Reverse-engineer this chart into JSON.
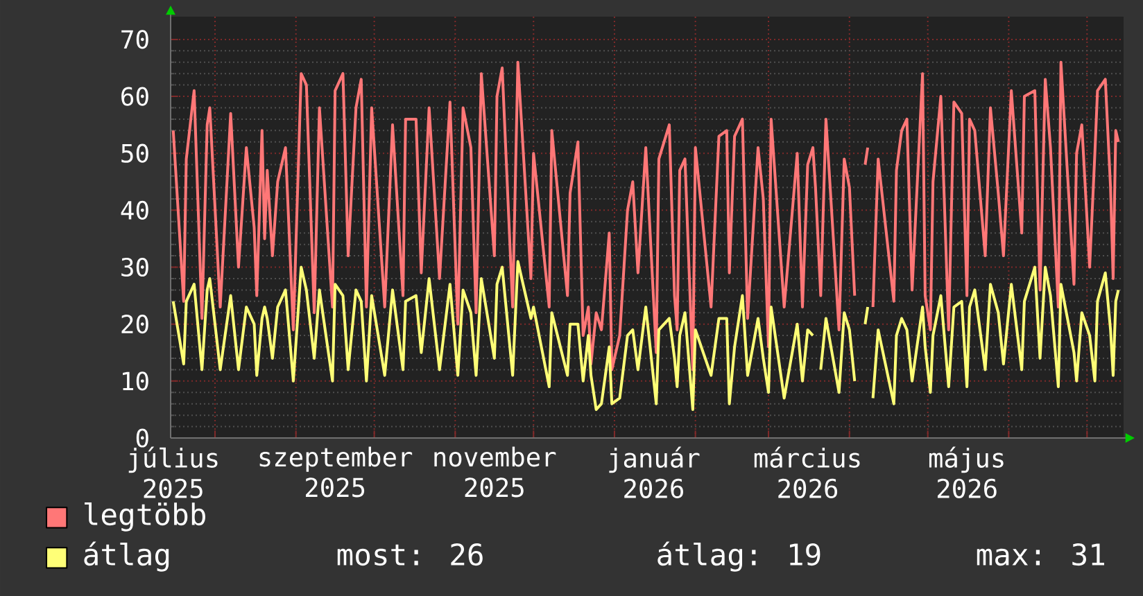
{
  "chart_data": {
    "type": "line",
    "x": [
      "2025-07-16",
      "2025-07-20",
      "2025-07-21",
      "2025-07-24",
      "2025-07-27",
      "2025-07-29",
      "2025-07-30",
      "2025-08-03",
      "2025-08-07",
      "2025-08-10",
      "2025-08-13",
      "2025-08-16",
      "2025-08-17",
      "2025-08-19",
      "2025-08-20",
      "2025-08-21",
      "2025-08-23",
      "2025-08-25",
      "2025-08-28",
      "2025-08-31",
      "2025-09-03",
      "2025-09-05",
      "2025-09-08",
      "2025-09-10",
      "2025-09-15",
      "2025-09-16",
      "2025-09-19",
      "2025-09-21",
      "2025-09-24",
      "2025-09-26",
      "2025-09-28",
      "2025-09-30",
      "2025-10-05",
      "2025-10-08",
      "2025-10-12",
      "2025-10-13",
      "2025-10-17",
      "2025-10-19",
      "2025-10-22",
      "2025-10-26",
      "2025-10-30",
      "2025-11-02",
      "2025-11-04",
      "2025-11-07",
      "2025-11-09",
      "2025-11-11",
      "2025-11-16",
      "2025-11-17",
      "2025-11-19",
      "2025-11-23",
      "2025-11-25",
      "2025-11-30",
      "2025-12-01",
      "2025-12-07",
      "2025-12-08",
      "2025-12-14",
      "2025-12-15",
      "2025-12-18",
      "2025-12-20",
      "2025-12-22",
      "2025-12-23",
      "2025-12-25",
      "2025-12-27",
      "2025-12-30",
      "2025-12-31",
      "2026-01-03",
      "2026-01-06",
      "2026-01-08",
      "2026-01-10",
      "2026-01-13",
      "2026-01-17",
      "2026-01-18",
      "2026-01-22",
      "2026-01-24",
      "2026-01-25",
      "2026-01-26",
      "2026-01-28",
      "2026-01-31",
      "2026-02-01",
      "2026-02-07",
      "2026-02-10",
      "2026-02-13",
      "2026-02-14",
      "2026-02-16",
      "2026-02-19",
      "2026-02-21",
      "2026-02-25",
      "2026-02-27",
      "2026-03-01",
      "2026-03-02",
      "2026-03-07",
      "2026-03-12",
      "2026-03-14",
      "2026-03-16",
      "2026-03-18",
      "2026-03-19",
      "2026-03-21",
      "2026-03-23",
      "2026-03-28",
      "2026-03-30",
      "2026-04-01",
      "2026-04-03",
      "2026-04-05",
      "2026-04-07",
      "2026-04-08",
      "2026-04-09",
      "2026-04-10",
      "2026-04-12",
      "2026-04-18",
      "2026-04-19",
      "2026-04-21",
      "2026-04-23",
      "2026-04-25",
      "2026-04-29",
      "2026-04-30",
      "2026-05-02",
      "2026-05-03",
      "2026-05-06",
      "2026-05-09",
      "2026-05-11",
      "2026-05-14",
      "2026-05-16",
      "2026-05-17",
      "2026-05-19",
      "2026-05-23",
      "2026-05-25",
      "2026-05-28",
      "2026-05-30",
      "2026-06-02",
      "2026-06-06",
      "2026-06-07",
      "2026-06-11",
      "2026-06-13",
      "2026-06-15",
      "2026-06-17",
      "2026-06-20",
      "2026-06-21",
      "2026-06-26",
      "2026-06-27",
      "2026-06-29",
      "2026-07-02",
      "2026-07-04",
      "2026-07-05",
      "2026-07-08",
      "2026-07-10",
      "2026-07-11",
      "2026-07-12",
      "2026-07-13"
    ],
    "series": [
      {
        "name": "legtöbb",
        "color": "#ff7777",
        "values": [
          54,
          24,
          49,
          61,
          21,
          55,
          58,
          23,
          57,
          30,
          51,
          37,
          25,
          54,
          35,
          47,
          32,
          45,
          51,
          19,
          64,
          62,
          22,
          58,
          23,
          61,
          64,
          32,
          58,
          63,
          23,
          58,
          23,
          55,
          25,
          56,
          56,
          29,
          58,
          28,
          59,
          20,
          58,
          51,
          22,
          64,
          32,
          60,
          65,
          23,
          66,
          28,
          50,
          23,
          54,
          25,
          43,
          52,
          18,
          23,
          13,
          22,
          19,
          36,
          12,
          18,
          40,
          45,
          29,
          51,
          15,
          49,
          55,
          25,
          19,
          47,
          49,
          12,
          51,
          23,
          53,
          54,
          29,
          53,
          56,
          21,
          51,
          42,
          16,
          56,
          23,
          50,
          23,
          48,
          51,
          44,
          25,
          56,
          19,
          49,
          44,
          25,
          null,
          48,
          51,
          null,
          23,
          49,
          24,
          47,
          54,
          56,
          26,
          64,
          25,
          19,
          45,
          60,
          19,
          59,
          57,
          25,
          56,
          54,
          32,
          58,
          43,
          32,
          61,
          36,
          60,
          61,
          26,
          63,
          51,
          23,
          66,
          27,
          50,
          55,
          30,
          50,
          61,
          63,
          44,
          28,
          54,
          52
        ]
      },
      {
        "name": "átlag",
        "color": "#ffff77",
        "values": [
          24,
          13,
          24,
          27,
          12,
          26,
          28,
          12,
          25,
          12,
          23,
          20,
          11,
          21,
          23,
          21,
          14,
          23,
          26,
          10,
          30,
          26,
          14,
          26,
          10,
          27,
          25,
          12,
          26,
          24,
          10,
          25,
          11,
          26,
          12,
          24,
          25,
          15,
          28,
          12,
          27,
          11,
          26,
          22,
          11,
          28,
          14,
          27,
          30,
          11,
          31,
          21,
          23,
          9,
          22,
          11,
          20,
          20,
          10,
          18,
          11,
          5,
          6,
          16,
          6,
          7,
          18,
          19,
          12,
          23,
          6,
          19,
          21,
          14,
          9,
          18,
          22,
          5,
          19,
          11,
          21,
          21,
          6,
          16,
          25,
          11,
          21,
          14,
          8,
          23,
          7,
          20,
          10,
          19,
          18,
          null,
          12,
          21,
          8,
          22,
          19,
          10,
          null,
          20,
          23,
          null,
          7,
          19,
          6,
          18,
          21,
          19,
          10,
          23,
          16,
          8,
          18,
          25,
          9,
          23,
          24,
          9,
          23,
          26,
          12,
          27,
          22,
          13,
          27,
          12,
          24,
          30,
          14,
          30,
          25,
          9,
          27,
          15,
          10,
          22,
          18,
          10,
          24,
          29,
          19,
          11,
          24,
          26
        ]
      }
    ],
    "xlim": [
      "2025-07-15",
      "2026-07-15"
    ],
    "xticks": [
      {
        "value": "2025-07-16",
        "label": "július 2025"
      },
      {
        "value": "2025-08-01",
        "label": null
      },
      {
        "value": "2025-09-01",
        "label": null
      },
      {
        "value": "2025-09-16",
        "label": "szeptember 2025"
      },
      {
        "value": "2025-10-01",
        "label": null
      },
      {
        "value": "2025-11-01",
        "label": null
      },
      {
        "value": "2025-11-16",
        "label": "november 2025"
      },
      {
        "value": "2025-12-01",
        "label": null
      },
      {
        "value": "2026-01-01",
        "label": null
      },
      {
        "value": "2026-01-16",
        "label": "január 2026"
      },
      {
        "value": "2026-02-01",
        "label": null
      },
      {
        "value": "2026-03-01",
        "label": null
      },
      {
        "value": "2026-03-16",
        "label": "március 2026"
      },
      {
        "value": "2026-04-01",
        "label": null
      },
      {
        "value": "2026-05-01",
        "label": null
      },
      {
        "value": "2026-05-16",
        "label": "május 2026"
      },
      {
        "value": "2026-06-01",
        "label": null
      },
      {
        "value": "2026-07-01",
        "label": null
      }
    ],
    "ylim": [
      0,
      74
    ],
    "yticks": [
      0,
      10,
      20,
      30,
      40,
      50,
      60,
      70
    ],
    "grid": true,
    "legend": "bottom",
    "annotations": [
      "most: 26",
      "átlag: 19",
      "max: 31"
    ]
  }
}
